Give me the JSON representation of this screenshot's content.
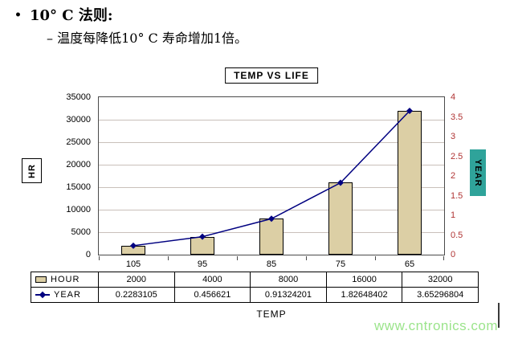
{
  "slide": {
    "bullet_marker": "•",
    "bullet1": "10° C 法则:",
    "bullet2": "– 温度每降低10° C 寿命增加1倍。"
  },
  "watermark": {
    "text": "www.cntronics.com",
    "color": "#9be48b"
  },
  "chart_data": {
    "type": "bar+line",
    "title": "TEMP VS LIFE",
    "xlabel": "TEMP",
    "categories": [
      "105",
      "95",
      "85",
      "75",
      "65"
    ],
    "series": [
      {
        "name": "HOUR",
        "type": "bar",
        "axis": "left",
        "color": "#dccfa5",
        "values": [
          2000,
          4000,
          8000,
          16000,
          32000
        ],
        "display": [
          "2000",
          "4000",
          "8000",
          "16000",
          "32000"
        ]
      },
      {
        "name": "YEAR",
        "type": "line",
        "axis": "right",
        "color": "#000080",
        "values": [
          0.2283105,
          0.456621,
          0.91324201,
          1.82648402,
          3.65296804
        ],
        "display": [
          "0.2283105",
          "0.456621",
          "0.91324201",
          "1.82648402",
          "3.65296804"
        ]
      }
    ],
    "left_axis": {
      "label": "HR",
      "min": 0,
      "max": 35000,
      "step": 5000
    },
    "right_axis": {
      "label": "YEAR",
      "min": 0,
      "max": 4,
      "step": 0.5,
      "color": "#b03434",
      "box_color": "#2fa39a"
    },
    "grid": true,
    "legend_position": "data-table-left"
  }
}
